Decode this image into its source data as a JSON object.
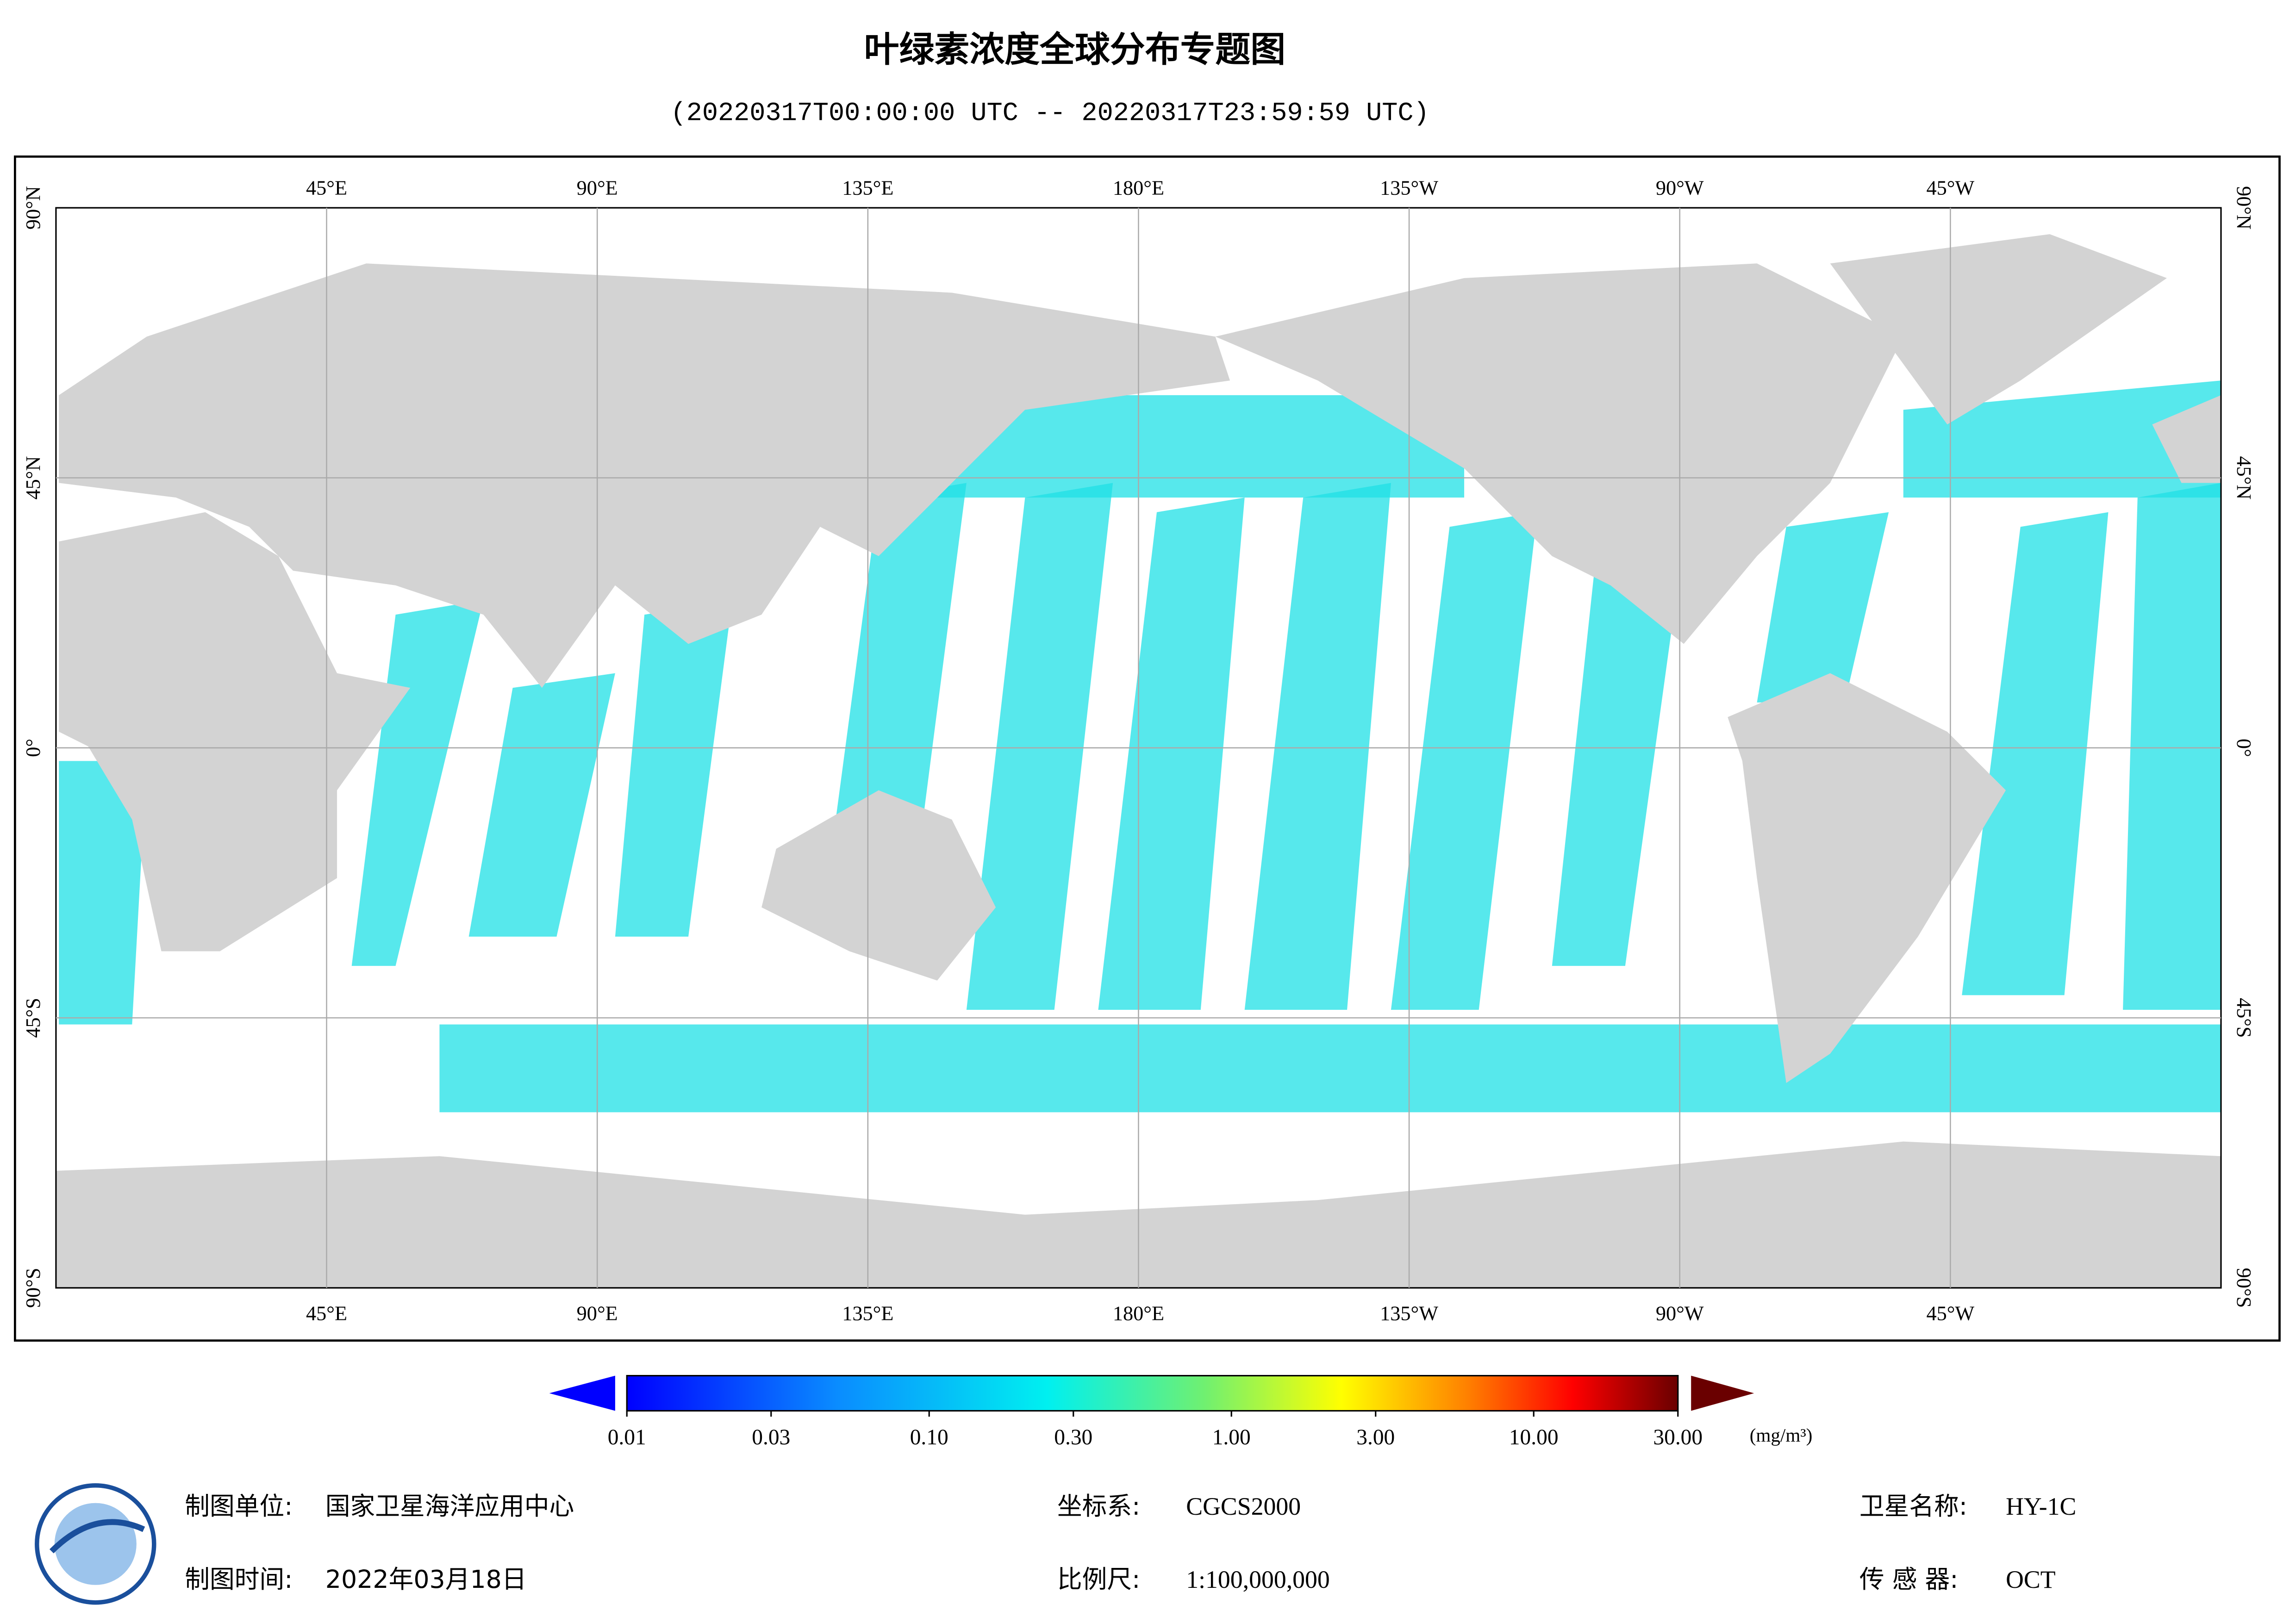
{
  "header": {
    "title": "叶绿素浓度全球分布专题图",
    "subtitle": "(20220317T00:00:00 UTC -- 20220317T23:59:59 UTC)"
  },
  "map": {
    "lonlim": [
      0,
      360
    ],
    "latlim": [
      -90,
      90
    ],
    "lon_ticks": [
      {
        "value": 45,
        "label": "45°E"
      },
      {
        "value": 90,
        "label": "90°E"
      },
      {
        "value": 135,
        "label": "135°E"
      },
      {
        "value": 180,
        "label": "180°E"
      },
      {
        "value": 225,
        "label": "135°W"
      },
      {
        "value": 270,
        "label": "90°W"
      },
      {
        "value": 315,
        "label": "45°W"
      }
    ],
    "lat_ticks": [
      {
        "value": 90,
        "label": "90°N"
      },
      {
        "value": 45,
        "label": "45°N"
      },
      {
        "value": 0,
        "label": "0°"
      },
      {
        "value": -45,
        "label": "45°S"
      },
      {
        "value": -90,
        "label": "90°S"
      }
    ]
  },
  "legend": {
    "range": [
      0.01,
      30
    ],
    "log": true,
    "ticks": [
      0.01,
      0.03,
      {
        "value": 0.1,
        "label": "0.10"
      },
      {
        "value": 0.3,
        "label": "0.30"
      },
      {
        "value": 1,
        "label": "1.00"
      },
      {
        "value": 3,
        "label": "3.00"
      },
      {
        "value": 10,
        "label": "10.00"
      },
      {
        "value": 30,
        "label": "30.00"
      }
    ],
    "unit": "(mg/m³)"
  },
  "footer": {
    "unit_label": "制图单位:",
    "unit": "国家卫星海洋应用中心",
    "date_label": "制图时间:",
    "date": "2022年03月18日",
    "crs_label": "坐标系:",
    "crs": "CGCS2000",
    "scale_label": "比例尺:",
    "scale": "1:100,000,000",
    "satellite_label": "卫星名称:",
    "satellite": "HY-1C",
    "sensor_label": "传 感 器:",
    "sensor": "OCT"
  }
}
